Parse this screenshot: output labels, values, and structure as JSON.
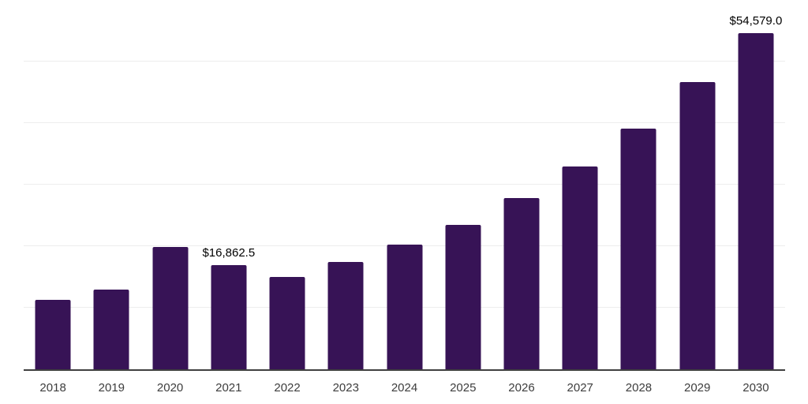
{
  "chart_data": {
    "type": "bar",
    "title": "",
    "xlabel": "",
    "ylabel": "",
    "categories": [
      "2018",
      "2019",
      "2020",
      "2021",
      "2022",
      "2023",
      "2024",
      "2025",
      "2026",
      "2027",
      "2028",
      "2029",
      "2030"
    ],
    "values": [
      11280,
      12950,
      19870,
      16862.5,
      14960,
      17430,
      20250,
      23520,
      27820,
      32950,
      39100,
      46730,
      54579
    ],
    "data_labels": [
      "",
      "",
      "",
      "$16,862.5",
      "",
      "",
      "",
      "",
      "",
      "",
      "",
      "",
      "$54,579.0"
    ],
    "ylim": [
      0,
      60000
    ],
    "grid_step": 10000,
    "grid": "on",
    "legend": "none",
    "y_tick_labels": "hidden",
    "colors": {
      "bar": "#371356",
      "gridline": "#ededed",
      "axis": "#404040",
      "x_tick_label": "#3d3d3d",
      "data_label": "#000000",
      "background": "#ffffff"
    }
  }
}
